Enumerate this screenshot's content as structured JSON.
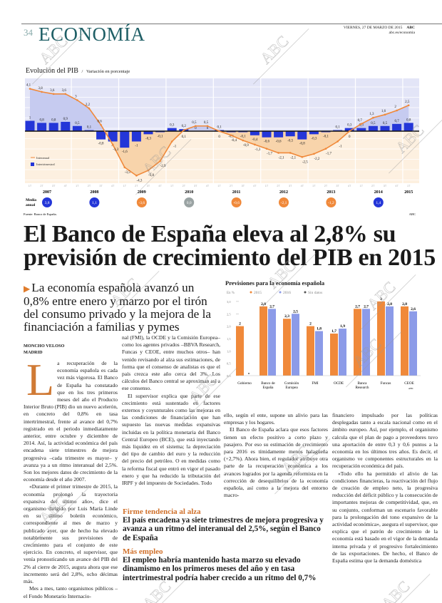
{
  "header": {
    "page_number": "34",
    "section": "ECONOMÍA",
    "date": "VIERNES, 27 DE MARZO DE 2015",
    "brand": "ABC",
    "url": "abc.es/economia"
  },
  "watermark": "ABC",
  "colors": {
    "accent": "#1f5f66",
    "interanual": "#f0893a",
    "intertrimestral": "#2436d8",
    "y2016": "#8c9be8",
    "positive_bg": "#e3e5f7",
    "negative_bg": "#fdf0e0",
    "neutral": "#9aa3a3"
  },
  "chart_data": [
    {
      "type": "bar+line",
      "title": "Evolución del PIB",
      "subtitle": "Variación en porcentaje",
      "years": [
        "2007",
        "2008",
        "2009",
        "2010",
        "2011",
        "2012",
        "2013",
        "2014",
        "2015"
      ],
      "quarter_labels": [
        "1T",
        "2T",
        "3T",
        "4T"
      ],
      "series": [
        {
          "name": "Interanual",
          "type": "line",
          "values": [
            4.1,
            3.8,
            3.6,
            3.6,
            3.0,
            2.2,
            0.6,
            -1.3,
            -3.5,
            -4.3,
            -3.8,
            -2.9,
            -1.0,
            0.1,
            0.5,
            0.5,
            0.0,
            -0.4,
            -0.9,
            -1.3,
            -1.7,
            -2.1,
            -2.1,
            -2.5,
            -2.2,
            -1.7,
            -1.0,
            0.0,
            0.7,
            1.3,
            1.6,
            2.0,
            2.5
          ]
        },
        {
          "name": "Intertrimestral",
          "type": "bar",
          "values": [
            1.0,
            0.8,
            0.8,
            0.9,
            0.5,
            0.1,
            -0.8,
            -1.0,
            -1.6,
            -1.0,
            -0.3,
            -0.1,
            0.3,
            0.2,
            0.0,
            0.0,
            0.1,
            -0.1,
            -0.1,
            -0.4,
            -0.6,
            -0.6,
            -0.5,
            -0.8,
            -0.3,
            -0.1,
            0.1,
            0.3,
            0.3,
            0.5,
            0.5,
            0.7,
            0.8
          ]
        }
      ],
      "annual_label": "Media anual",
      "annual_average": [
        {
          "year": "2007",
          "value": "3,8",
          "sign": "pos"
        },
        {
          "year": "2008",
          "value": "1,1",
          "sign": "pos"
        },
        {
          "year": "2009",
          "value": "-3,6",
          "sign": "neg"
        },
        {
          "year": "2010",
          "value": "0,0",
          "sign": "zero"
        },
        {
          "year": "2011",
          "value": "-0,6",
          "sign": "neg"
        },
        {
          "year": "2012",
          "value": "-2,1",
          "sign": "neg"
        },
        {
          "year": "2013",
          "value": "-1,2",
          "sign": "neg"
        },
        {
          "year": "2014",
          "value": "1,4",
          "sign": "pos"
        }
      ],
      "ylim": [
        -4.6,
        4.6
      ],
      "legend_position": "left",
      "source": "Fuente: Banco de España.",
      "credit": "ABC"
    },
    {
      "type": "bar",
      "title": "Previsiones para la economía española",
      "ylabel": "En %",
      "categories": [
        "Gobierno",
        "Banco de España",
        "Comisión Europea",
        "FMI",
        "OCDE",
        "Banca Research",
        "Funcas",
        "CEOE"
      ],
      "series": [
        {
          "name": "2015",
          "values": [
            2,
            2.8,
            2.3,
            2,
            1.7,
            2.7,
            3,
            2.8
          ],
          "labels": [
            "2",
            "2,8",
            "2,3",
            "2",
            "1,7",
            "2,7",
            "3",
            "2,8"
          ]
        },
        {
          "name": "2016",
          "values": [
            null,
            2.7,
            2.5,
            1.8,
            1.9,
            2.7,
            2.8,
            2.6
          ],
          "labels": [
            "",
            "2,7",
            "2,5",
            "1,8",
            "1,9",
            "2,7",
            "2,8",
            "2,6"
          ]
        }
      ],
      "legend_extra": "Sin datos",
      "yticks": [
        "0,0",
        "0,5",
        "1,0",
        "1,5",
        "2,0",
        "2,5",
        "3,0"
      ],
      "ylim": [
        0,
        3
      ],
      "legend_position": "top",
      "credit": "ABC"
    }
  ],
  "article": {
    "headline": "El Banco de España eleva al 2,8% su previsión de crecimiento del PIB en 2015",
    "subheadline": "La economía española avanzó un 0,8% entre enero y marzo por el tirón del consumo privado y la mejora de la financiación a familias y pymes",
    "author": "MONCHO VELOSO",
    "location": "MADRID",
    "dropcap": "L",
    "col1": [
      "a recuperación de la economía española es cada vez más vigorosa. El Banco de España ha constatado que en los tres primeros meses del año el Producto Interior Bruto (PIB) dio un nuevo acelerón, en concreto del 0,8% en tasa intertrimestral, frente al avance del 0,7% registrado en el periodo inmediatamente anterior, entre octubre y diciembre de 2014. Así, la actividad económica del país encadena siete trimestres de mejora progresiva –cada trimestre es mayor– y avanza ya a un ritmo interanual del 2,5%. Son los mejores datos de crecimiento de la economía desde el año 2007.",
      "«Durante el primer trimestre de 2015, la economía prolongó la trayectoria expansiva del último año», dice el organismo dirigido por Luis María Linde en su último boletín económico, correspondiente al mes de marzo y publicado ayer, que de hecho ha elevado notablemente sus previsiones de crecimiento para el conjunto de este ejercicio. En concreto, el supervisor, que venía pronosticando un avance del PIB del 2% al cierre de 2015, augura ahora que ese incremento será del 2,8%, ocho décimas más.",
      "Mes a mes, tanto organismos públicos –el Fondo Monetario Internacio-"
    ],
    "col2": [
      "nal (FMI), la OCDE y la Comisión Europea– como los agentes privados –BBVA Research, Funcas y CEOE, entre muchos otros– han venido revisando al alza sus estimaciones, de forma que el consenso de analistas es que el país crezca este año cerca del 3%. Los cálculos del Banco central se aproximan así a ese consenso.",
      "El supervisor explica que parte de ese crecimiento está sustentado en factores externos y coyunturales como las mejoras en las condiciones de financiación que han supuesto las nuevas medidas expansivas incluidas en la política monetaria del Banco Central Europeo (BCE), que está inyectando más liquidez en el sistema; la depreciación del tipo de cambio del euro y la reducción del precio del petróleo. O en medidas como la reforma fiscal que entró en vigor el pasado enero y que ha reducido la tributación del IRPF y del impuesto de Sociedades. Todo"
    ],
    "col3": [
      "ello, según el ente, supone un alivio para las empresas y los hogares.",
      "El Banco de España aclara que esos factores tienen un efecto positivo a corto plazo y pasajero. Por eso su estimación de crecimiento para 2016 es tímidamente menos halagüeña (+2,7%). Ahora bien, el regulador atribuye otra parte de la recuperación económica a los avances logrados por la agenda reformista en la corrección de desequilibrios de la economía española, así como a la mejora del entorno macro-"
    ],
    "col4": [
      "financiero impulsado por las políticas desplegadas tanto a escala nacional como en el ámbito europeo. Así, por ejemplo, el organismo calcula que el plan de pago a proveedores tuvo una aportación de entre 0,3 y 0,6 puntos a la economía en los últimos tres años. Es decir, el organismo ve componentes estructurales en la recuperación económica del país.",
      "«Todo ello ha permitido el alivio de las condiciones financieras, la reactivación del flujo de creación de empleo neto, la progresiva reducción del déficit público y la consecución de importantes mejoras de competitividad, que, en su conjunto, conforman un escenario favorable para la prolongación del tono expansivo de la actividad económica», asegura el supervisor, que explica que el patrón de crecimiento de la economía está basado en el vigor de la demanda interna privada y el progresivo fortalecimiento de las exportaciones. De hecho, el Banco de España estima que la demanda doméstica"
    ],
    "highlights": [
      {
        "kicker": "Firme tendencia al alza",
        "text": "El país encadena ya siete trimestres de mejora progresiva y avanza a un ritmo del interanual del 2,5%, según el Banco de España"
      },
      {
        "kicker": "Más empleo",
        "text": "El empleo habría mantenido hasta marzo su elevado dinamismo en los primeros meses del año y en tasa intertrimestral podría haber crecido a un ritmo del 0,7%"
      }
    ]
  }
}
